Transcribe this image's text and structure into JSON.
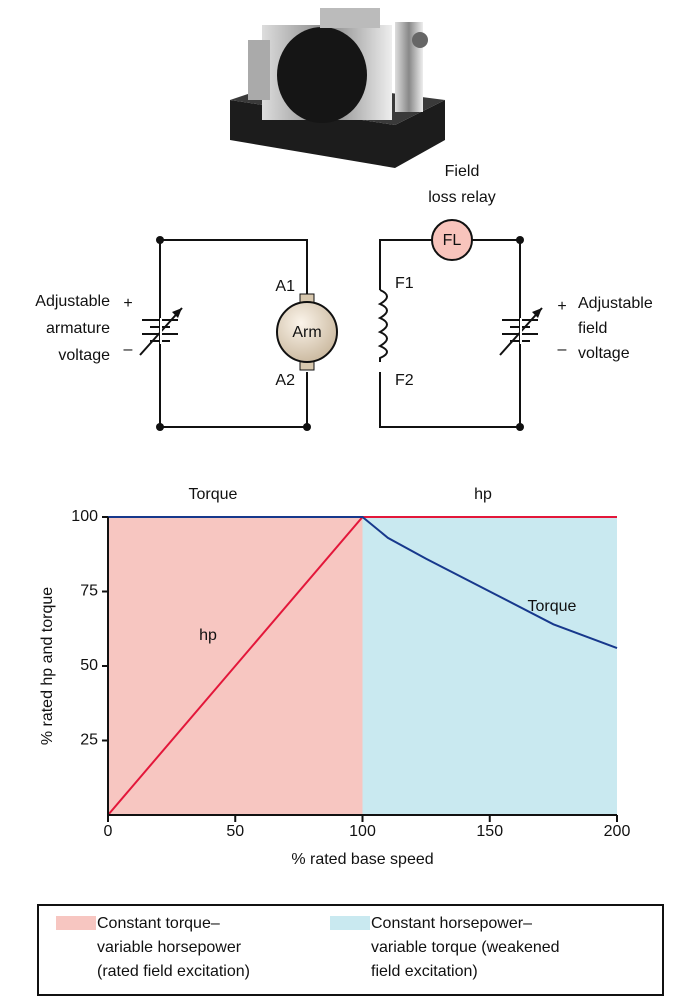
{
  "diagram": {
    "relay_label": [
      "Field",
      "loss relay"
    ],
    "relay_symbol": "FL",
    "armature_label": [
      "Adjustable",
      "armature",
      "voltage"
    ],
    "armature_plus": "+",
    "armature_minus": "–",
    "motor_terminals": [
      "A1",
      "A2"
    ],
    "motor_symbol": "Arm",
    "field_terminals": [
      "F1",
      "F2"
    ],
    "field_label": [
      "Adjustable",
      "field",
      "voltage"
    ],
    "field_plus": "+",
    "field_minus": "–"
  },
  "chart_data": {
    "type": "line",
    "xlabel": "% rated base speed",
    "ylabel": "% rated hp and torque",
    "xlim": [
      0,
      200
    ],
    "xticks": [
      0,
      50,
      100,
      150,
      200
    ],
    "ylim": [
      0,
      100
    ],
    "yticks": [
      25,
      50,
      75,
      100
    ],
    "regions": [
      {
        "name": [
          "Constant torque–",
          "variable horsepower",
          "(rated field excitation)"
        ],
        "color": "#f7c6c1",
        "x": [
          0,
          100
        ]
      },
      {
        "name": [
          "Constant horsepower–",
          "variable torque (weakened",
          "field excitation)"
        ],
        "color": "#c9e9f0",
        "x": [
          100,
          200
        ]
      }
    ],
    "series": [
      {
        "name": "hp",
        "color": "#e3173a",
        "x": [
          0,
          100,
          200
        ],
        "values": [
          0,
          100,
          100
        ]
      },
      {
        "name": "Torque",
        "color": "#17388c",
        "x": [
          0,
          100,
          110,
          125,
          150,
          175,
          200
        ],
        "values": [
          100,
          100,
          93,
          86,
          75,
          64,
          56
        ]
      }
    ],
    "annotations": [
      "Torque",
      "hp",
      "hp",
      "Torque"
    ]
  }
}
